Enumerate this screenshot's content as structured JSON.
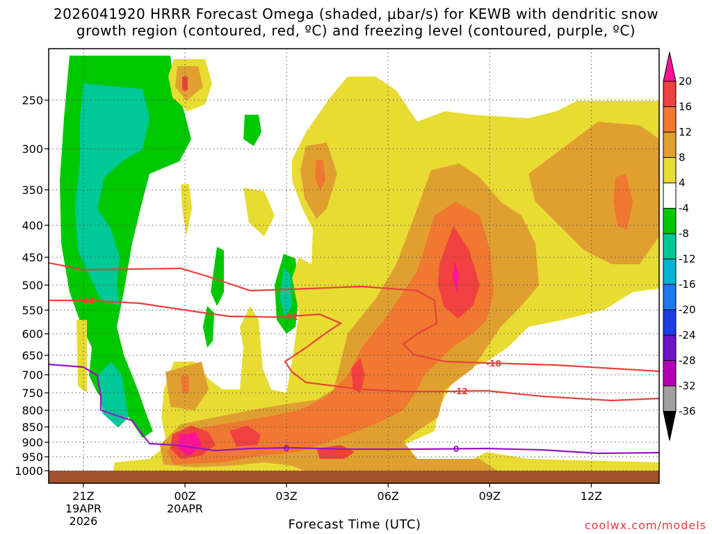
{
  "title_line1": "2026041920 HRRR Forecast Omega (shaded, μbar/s) for KEWB with dendritic snow",
  "title_line2": "growth region (contoured, red, ºC) and freezing level (contoured, purple, ºC)",
  "credit": "coolwx.com/models",
  "chart_data": {
    "type": "time-height cross section (filled contours with line contours)",
    "xlabel": "Forecast Time (UTC)",
    "ylabel": "",
    "x_ticks": [
      {
        "hour": -3,
        "label": "21Z",
        "sub1": "19APR",
        "sub2": "2026"
      },
      {
        "hour": 0,
        "label": "00Z",
        "sub1": "20APR",
        "sub2": ""
      },
      {
        "hour": 3,
        "label": "03Z",
        "sub1": "",
        "sub2": ""
      },
      {
        "hour": 6,
        "label": "06Z",
        "sub1": "",
        "sub2": ""
      },
      {
        "hour": 9,
        "label": "09Z",
        "sub1": "",
        "sub2": ""
      },
      {
        "hour": 12,
        "label": "12Z",
        "sub1": "",
        "sub2": ""
      }
    ],
    "xlim_hours": [
      -4,
      14
    ],
    "y_axis": "pressure (hPa), inverted",
    "ylim": [
      1020,
      200
    ],
    "y_ticks": [
      250,
      300,
      350,
      400,
      450,
      500,
      550,
      600,
      650,
      700,
      750,
      800,
      850,
      900,
      950,
      1000
    ],
    "grid": "dotted",
    "ground_color": "#a0522d",
    "colorbar": {
      "position": "right",
      "labels": [
        "20",
        "16",
        "12",
        "8",
        "4",
        "-4",
        "-8",
        "-12",
        "-16",
        "-20",
        "-24",
        "-28",
        "-32",
        "-36"
      ],
      "colors": [
        "#ff1493",
        "#f04040",
        "#f07830",
        "#e0a030",
        "#e8dc32",
        "#ffffff",
        "#00c800",
        "#00c896",
        "#00b4d2",
        "#1e78f0",
        "#1e3ce6",
        "#6e14c8",
        "#b400b4",
        "#a0a0a0",
        "#000000"
      ]
    },
    "contour_labels": {
      "dgz": [
        "-12",
        "-12",
        "-18",
        "-12"
      ],
      "freezing": [
        "0",
        "0"
      ]
    },
    "line_colors": {
      "dgz": "#e8403c",
      "freezing": "#9614c8"
    },
    "fill_colors": {
      "yellow": "#e8dc32",
      "light_orange": "#e0a030",
      "orange": "#f07830",
      "red": "#f04040",
      "pink": "#ff1493",
      "green": "#00c800",
      "teal": "#00c896",
      "cyan": "#00b4d2"
    }
  }
}
